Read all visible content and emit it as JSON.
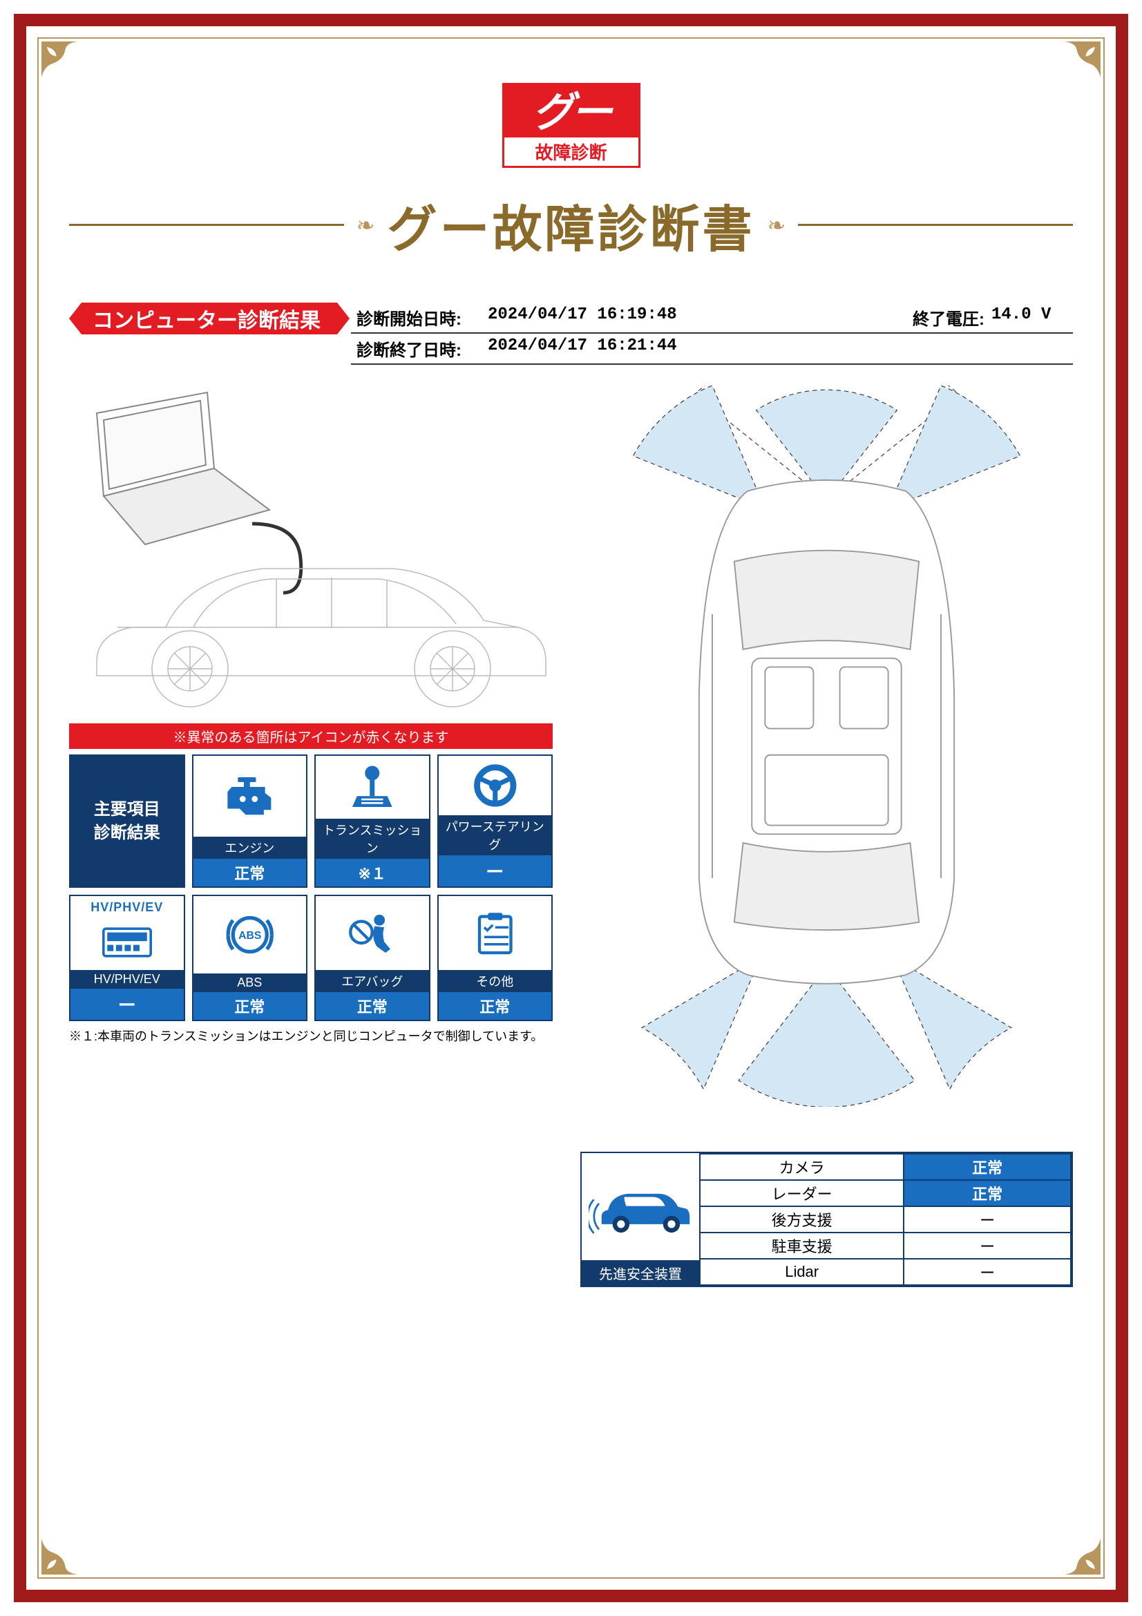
{
  "logo": {
    "top": "グー",
    "bottom": "故障診断"
  },
  "title": "グー故障診断書",
  "section_label": "コンピューター診断結果",
  "meta": {
    "start_label": "診断開始日時:",
    "start_value": "2024/04/17 16:19:48",
    "end_label": "診断終了日時:",
    "end_value": "2024/04/17 16:21:44",
    "voltage_label": "終了電圧:",
    "voltage_value": "14.0 V"
  },
  "red_banner": "※異常のある箇所はアイコンが赤くなります",
  "results_header": "主要項目\n診断結果",
  "cards": {
    "engine": {
      "label": "エンジン",
      "status": "正常"
    },
    "transmission": {
      "label": "トランスミッション",
      "status": "※１"
    },
    "power_steer": {
      "label": "パワーステアリング",
      "status": "ー"
    },
    "hv": {
      "top": "HV/PHV/EV",
      "label": "HV/PHV/EV",
      "status": "ー"
    },
    "abs": {
      "label": "ABS",
      "status": "正常"
    },
    "airbag": {
      "label": "エアバッグ",
      "status": "正常"
    },
    "other": {
      "label": "その他",
      "status": "正常"
    }
  },
  "footnote": "※１:本車両のトランスミッションはエンジンと同じコンピュータで制御しています。",
  "safety": {
    "header": "先進安全装置",
    "rows": [
      {
        "name": "カメラ",
        "value": "正常",
        "normal": true
      },
      {
        "name": "レーダー",
        "value": "正常",
        "normal": true
      },
      {
        "name": "後方支援",
        "value": "ー",
        "normal": false
      },
      {
        "name": "駐車支援",
        "value": "ー",
        "normal": false
      },
      {
        "name": "Lidar",
        "value": "ー",
        "normal": false
      }
    ]
  },
  "colors": {
    "red": "#e31b23",
    "navy": "#123a6b",
    "blue": "#1a6ec0",
    "gold": "#b8955c",
    "brown": "#8a6a2a",
    "frame": "#a21b1b"
  }
}
